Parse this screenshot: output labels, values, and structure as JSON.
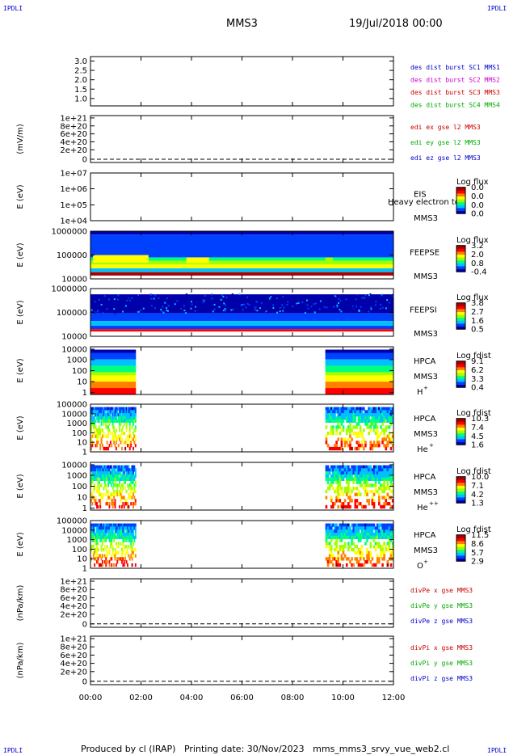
{
  "corners": {
    "tl": "IPDLI",
    "tr": "IPDLI",
    "bl": "IPDLI",
    "br": "IPDLI"
  },
  "header": {
    "spacecraft": "MMS3",
    "date": "19/Jul/2018 00:00"
  },
  "footer": "Produced by cl (IRAP)   Printing date: 30/Nov/2023   mms_mms3_srvy_vue_web2.cl",
  "colors": {
    "colorbar": [
      "#0000aa",
      "#0040ff",
      "#00c0ff",
      "#00ff80",
      "#a0ff00",
      "#ffff00",
      "#ff8000",
      "#ff0000",
      "#aa0000"
    ]
  },
  "chart_data": [
    {
      "type": "line",
      "id": "p1",
      "yticks": [
        "3.0",
        "2.5",
        "2.0",
        "1.5",
        "1.0"
      ],
      "legend": [
        {
          "text": "des dist burst SC1 MMS1",
          "color": "#0000cc"
        },
        {
          "text": "des dist burst SC2 MMS2",
          "color": "#cc00cc"
        },
        {
          "text": "des dist burst SC3 MMS3",
          "color": "#cc0000"
        },
        {
          "text": "des dist burst SC4 MMS4",
          "color": "#00aa00"
        }
      ]
    },
    {
      "type": "line",
      "id": "p2",
      "ylabel": "(mV/m)",
      "yticks": [
        "1e+21",
        "8e+20",
        "6e+20",
        "4e+20",
        "2e+20",
        "0"
      ],
      "legend": [
        {
          "text": "edi ex gse l2 MMS3",
          "color": "#cc0000"
        },
        {
          "text": "edi ey gse l2 MMS3",
          "color": "#00aa00"
        },
        {
          "text": "edi ez gse l2 MMS3",
          "color": "#0000cc"
        }
      ]
    },
    {
      "type": "heatmap",
      "id": "p3",
      "ylabel": "E (eV)",
      "yticks": [
        "1e+07",
        "1e+06",
        "1e+05",
        "1e+04"
      ],
      "instrument": "EIS",
      "overlay_text": "Heavy electron to",
      "sc": "MMS3",
      "cb_title": "Log flux",
      "cb_ticks": [
        "0.0",
        "0.0",
        "0.0",
        "0.0"
      ]
    },
    {
      "type": "heatmap",
      "id": "p4",
      "ylabel": "E (eV)",
      "yticks": [
        "1000000",
        "100000",
        "10000"
      ],
      "instrument": "FEEPSE",
      "sc": "MMS3",
      "cb_title": "Log flux",
      "cb_ticks": [
        "3.2",
        "2.0",
        "0.8",
        "-0.4"
      ]
    },
    {
      "type": "heatmap",
      "id": "p5",
      "ylabel": "E (eV)",
      "yticks": [
        "1000000",
        "100000",
        "10000"
      ],
      "instrument": "FEEPSI",
      "sc": "MMS3",
      "cb_title": "Log flux",
      "cb_ticks": [
        "3.8",
        "2.7",
        "1.6",
        "0.5"
      ]
    },
    {
      "type": "heatmap",
      "id": "p6",
      "ylabel": "E (eV)",
      "yticks": [
        "10000",
        "1000",
        "100",
        "10",
        "1"
      ],
      "instrument": "HPCA",
      "sc": "MMS3",
      "species": "H",
      "charge": "+",
      "cb_title": "Log fdist",
      "cb_ticks": [
        "9.1",
        "6.2",
        "3.3",
        "0.4"
      ]
    },
    {
      "type": "heatmap",
      "id": "p7",
      "ylabel": "E (eV)",
      "yticks": [
        "100000",
        "10000",
        "1000",
        "100",
        "10",
        "1"
      ],
      "instrument": "HPCA",
      "sc": "MMS3",
      "species": "He",
      "charge": "+",
      "cb_title": "Log fdist",
      "cb_ticks": [
        "10.3",
        "7.4",
        "4.5",
        "1.6"
      ]
    },
    {
      "type": "heatmap",
      "id": "p8",
      "ylabel": "E (eV)",
      "yticks": [
        "10000",
        "1000",
        "100",
        "10",
        "1"
      ],
      "instrument": "HPCA",
      "sc": "MMS3",
      "species": "He",
      "charge": "++",
      "cb_title": "Log fdist",
      "cb_ticks": [
        "10.0",
        "7.1",
        "4.2",
        "1.3"
      ]
    },
    {
      "type": "heatmap",
      "id": "p9",
      "ylabel": "E (eV)",
      "yticks": [
        "100000",
        "10000",
        "1000",
        "100",
        "10",
        "1"
      ],
      "instrument": "HPCA",
      "sc": "MMS3",
      "species": "O",
      "charge": "+",
      "cb_title": "Log fdist",
      "cb_ticks": [
        "11.5",
        "8.6",
        "5.7",
        "2.9"
      ]
    },
    {
      "type": "line",
      "id": "p10",
      "ylabel": "(nPa/km)",
      "yticks": [
        "1e+21",
        "8e+20",
        "6e+20",
        "4e+20",
        "2e+20",
        "0"
      ],
      "legend": [
        {
          "text": "divPe x gse MMS3",
          "color": "#cc0000"
        },
        {
          "text": "divPe y gse MMS3",
          "color": "#00aa00"
        },
        {
          "text": "divPe z gse MMS3",
          "color": "#0000cc"
        }
      ]
    },
    {
      "type": "line",
      "id": "p11",
      "ylabel": "(nPa/km)",
      "yticks": [
        "1e+21",
        "8e+20",
        "6e+20",
        "4e+20",
        "2e+20",
        "0"
      ],
      "legend": [
        {
          "text": "divPi x gse MMS3",
          "color": "#cc0000"
        },
        {
          "text": "divPi y gse MMS3",
          "color": "#00aa00"
        },
        {
          "text": "divPi z gse MMS3",
          "color": "#0000cc"
        }
      ]
    }
  ],
  "xaxis": {
    "ticks": [
      "00:00",
      "02:00",
      "04:00",
      "06:00",
      "08:00",
      "10:00",
      "12:00"
    ],
    "range_hours": [
      0,
      12
    ]
  }
}
